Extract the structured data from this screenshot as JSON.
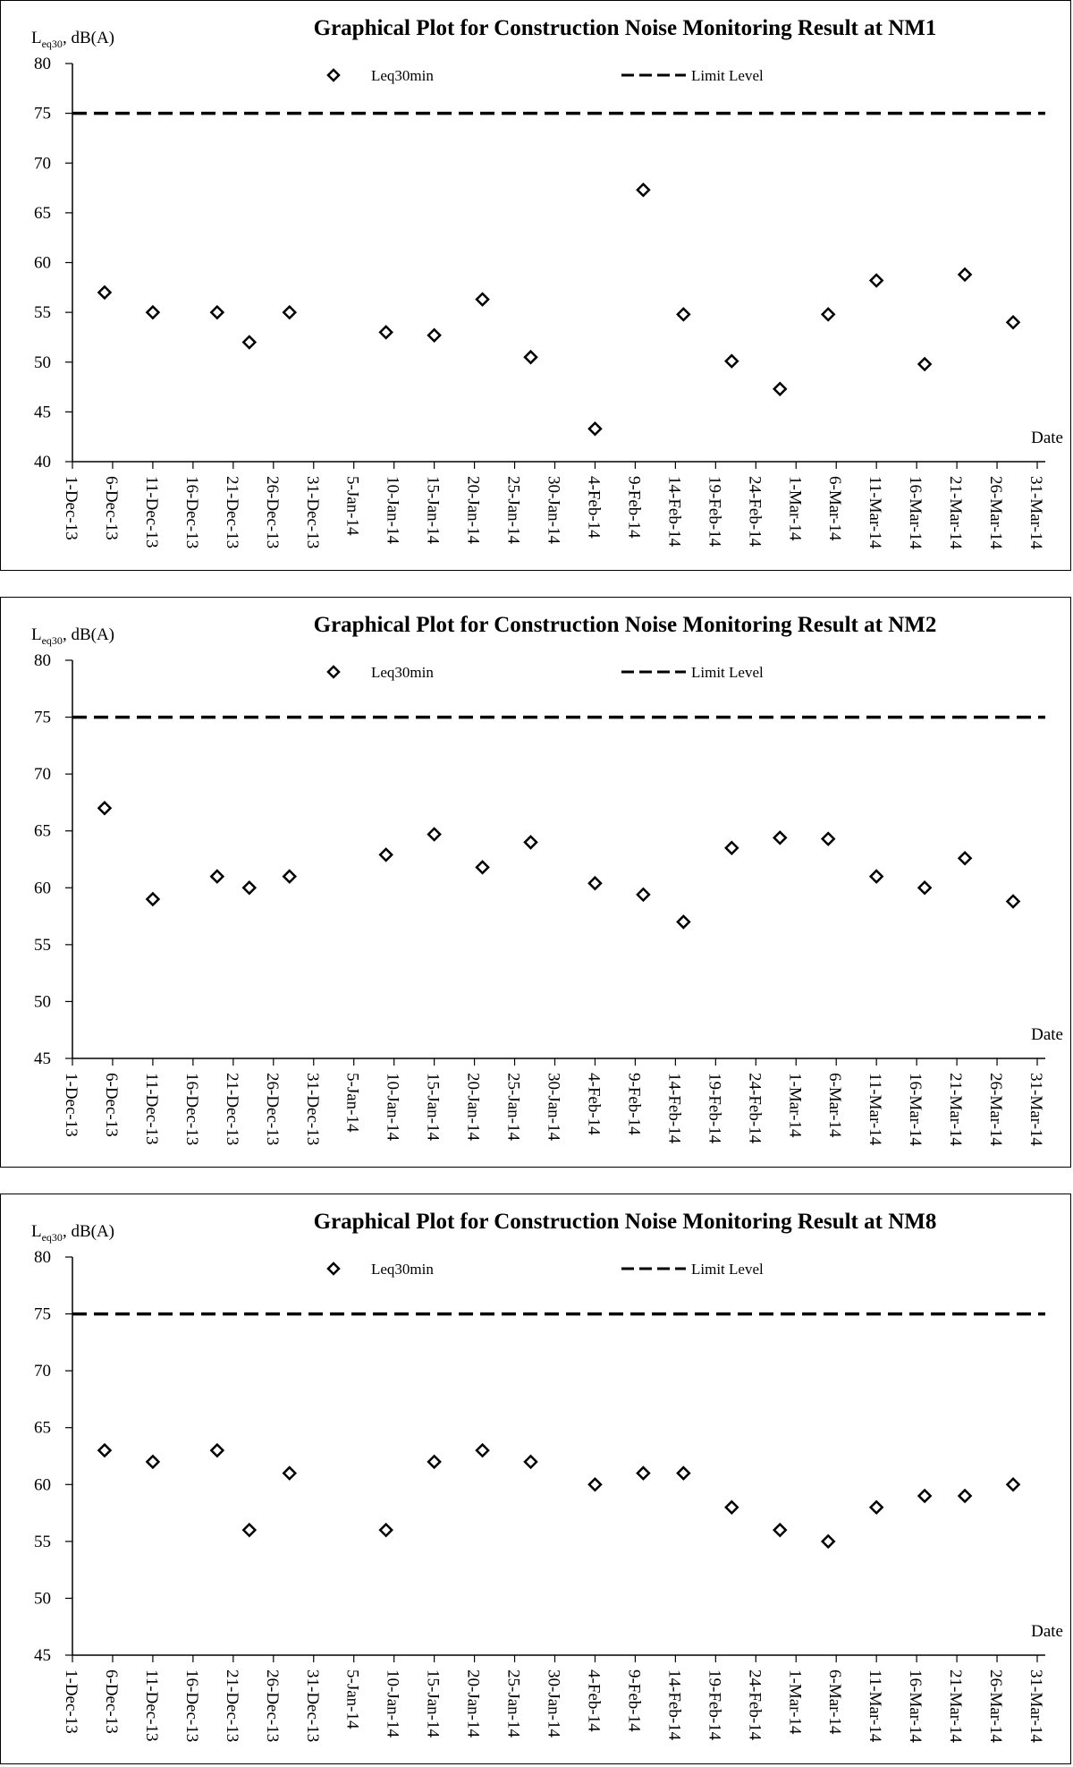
{
  "chart_data": [
    {
      "type": "scatter",
      "title": "Graphical Plot for Construction Noise Monitoring Result at NM1",
      "ylabel": {
        "main": "L",
        "sub": "eq30",
        "rest": ", dB(A)"
      },
      "xlabel": "Date",
      "ylim": [
        40,
        80
      ],
      "ystep": 5,
      "xlim": [
        "2013-12-01",
        "2014-03-31"
      ],
      "x_ticks": [
        "1-Dec-13",
        "6-Dec-13",
        "11-Dec-13",
        "16-Dec-13",
        "21-Dec-13",
        "26-Dec-13",
        "31-Dec-13",
        "5-Jan-14",
        "10-Jan-14",
        "15-Jan-14",
        "20-Jan-14",
        "25-Jan-14",
        "30-Jan-14",
        "4-Feb-14",
        "9-Feb-14",
        "14-Feb-14",
        "19-Feb-14",
        "24-Feb-14",
        "1-Mar-14",
        "6-Mar-14",
        "11-Mar-14",
        "16-Mar-14",
        "21-Mar-14",
        "26-Mar-14",
        "31-Mar-14"
      ],
      "legend": {
        "series_label": "Leq30min",
        "limit_label": "Limit Level",
        "position": "top"
      },
      "limit_level": 75,
      "series": [
        {
          "name": "Leq30min",
          "points": [
            {
              "x": "2013-12-05",
              "y": 57
            },
            {
              "x": "2013-12-11",
              "y": 55
            },
            {
              "x": "2013-12-19",
              "y": 55
            },
            {
              "x": "2013-12-23",
              "y": 52
            },
            {
              "x": "2013-12-28",
              "y": 55
            },
            {
              "x": "2014-01-09",
              "y": 53
            },
            {
              "x": "2014-01-15",
              "y": 52.7
            },
            {
              "x": "2014-01-21",
              "y": 56.3
            },
            {
              "x": "2014-01-27",
              "y": 50.5
            },
            {
              "x": "2014-02-04",
              "y": 43.3
            },
            {
              "x": "2014-02-10",
              "y": 67.3
            },
            {
              "x": "2014-02-15",
              "y": 54.8
            },
            {
              "x": "2014-02-21",
              "y": 50.1
            },
            {
              "x": "2014-02-27",
              "y": 47.3
            },
            {
              "x": "2014-03-05",
              "y": 54.8
            },
            {
              "x": "2014-03-11",
              "y": 58.2
            },
            {
              "x": "2014-03-17",
              "y": 49.8
            },
            {
              "x": "2014-03-22",
              "y": 58.8
            },
            {
              "x": "2014-03-28",
              "y": 54
            }
          ]
        }
      ]
    },
    {
      "type": "scatter",
      "title": "Graphical Plot for Construction Noise Monitoring Result at NM2",
      "ylabel": {
        "main": "L",
        "sub": "eq30",
        "rest": ", dB(A)"
      },
      "xlabel": "Date",
      "ylim": [
        45,
        80
      ],
      "ystep": 5,
      "xlim": [
        "2013-12-01",
        "2014-03-31"
      ],
      "x_ticks": [
        "1-Dec-13",
        "6-Dec-13",
        "11-Dec-13",
        "16-Dec-13",
        "21-Dec-13",
        "26-Dec-13",
        "31-Dec-13",
        "5-Jan-14",
        "10-Jan-14",
        "15-Jan-14",
        "20-Jan-14",
        "25-Jan-14",
        "30-Jan-14",
        "4-Feb-14",
        "9-Feb-14",
        "14-Feb-14",
        "19-Feb-14",
        "24-Feb-14",
        "1-Mar-14",
        "6-Mar-14",
        "11-Mar-14",
        "16-Mar-14",
        "21-Mar-14",
        "26-Mar-14",
        "31-Mar-14"
      ],
      "legend": {
        "series_label": "Leq30min",
        "limit_label": "Limit Level",
        "position": "top"
      },
      "limit_level": 75,
      "series": [
        {
          "name": "Leq30min",
          "points": [
            {
              "x": "2013-12-05",
              "y": 67
            },
            {
              "x": "2013-12-11",
              "y": 59
            },
            {
              "x": "2013-12-19",
              "y": 61
            },
            {
              "x": "2013-12-23",
              "y": 60
            },
            {
              "x": "2013-12-28",
              "y": 61
            },
            {
              "x": "2014-01-09",
              "y": 62.9
            },
            {
              "x": "2014-01-15",
              "y": 64.7
            },
            {
              "x": "2014-01-21",
              "y": 61.8
            },
            {
              "x": "2014-01-27",
              "y": 64
            },
            {
              "x": "2014-02-04",
              "y": 60.4
            },
            {
              "x": "2014-02-10",
              "y": 59.4
            },
            {
              "x": "2014-02-15",
              "y": 57
            },
            {
              "x": "2014-02-21",
              "y": 63.5
            },
            {
              "x": "2014-02-27",
              "y": 64.4
            },
            {
              "x": "2014-03-05",
              "y": 64.3
            },
            {
              "x": "2014-03-11",
              "y": 61
            },
            {
              "x": "2014-03-17",
              "y": 60
            },
            {
              "x": "2014-03-22",
              "y": 62.6
            },
            {
              "x": "2014-03-28",
              "y": 58.8
            }
          ]
        }
      ]
    },
    {
      "type": "scatter",
      "title": "Graphical Plot for Construction Noise Monitoring Result at NM8",
      "ylabel": {
        "main": "L",
        "sub": "eq30",
        "rest": ", dB(A)"
      },
      "xlabel": "Date",
      "ylim": [
        45,
        80
      ],
      "ystep": 5,
      "xlim": [
        "2013-12-01",
        "2014-03-31"
      ],
      "x_ticks": [
        "1-Dec-13",
        "6-Dec-13",
        "11-Dec-13",
        "16-Dec-13",
        "21-Dec-13",
        "26-Dec-13",
        "31-Dec-13",
        "5-Jan-14",
        "10-Jan-14",
        "15-Jan-14",
        "20-Jan-14",
        "25-Jan-14",
        "30-Jan-14",
        "4-Feb-14",
        "9-Feb-14",
        "14-Feb-14",
        "19-Feb-14",
        "24-Feb-14",
        "1-Mar-14",
        "6-Mar-14",
        "11-Mar-14",
        "16-Mar-14",
        "21-Mar-14",
        "26-Mar-14",
        "31-Mar-14"
      ],
      "legend": {
        "series_label": "Leq30min",
        "limit_label": "Limit Level",
        "position": "top"
      },
      "limit_level": 75,
      "series": [
        {
          "name": "Leq30min",
          "points": [
            {
              "x": "2013-12-05",
              "y": 63
            },
            {
              "x": "2013-12-11",
              "y": 62
            },
            {
              "x": "2013-12-19",
              "y": 63
            },
            {
              "x": "2013-12-23",
              "y": 56
            },
            {
              "x": "2013-12-28",
              "y": 61
            },
            {
              "x": "2014-01-09",
              "y": 56
            },
            {
              "x": "2014-01-15",
              "y": 62
            },
            {
              "x": "2014-01-21",
              "y": 63
            },
            {
              "x": "2014-01-27",
              "y": 62
            },
            {
              "x": "2014-02-04",
              "y": 60
            },
            {
              "x": "2014-02-10",
              "y": 61
            },
            {
              "x": "2014-02-15",
              "y": 61
            },
            {
              "x": "2014-02-21",
              "y": 58
            },
            {
              "x": "2014-02-27",
              "y": 56
            },
            {
              "x": "2014-03-05",
              "y": 55
            },
            {
              "x": "2014-03-11",
              "y": 58
            },
            {
              "x": "2014-03-17",
              "y": 59
            },
            {
              "x": "2014-03-22",
              "y": 59
            },
            {
              "x": "2014-03-28",
              "y": 60
            }
          ]
        }
      ]
    }
  ]
}
